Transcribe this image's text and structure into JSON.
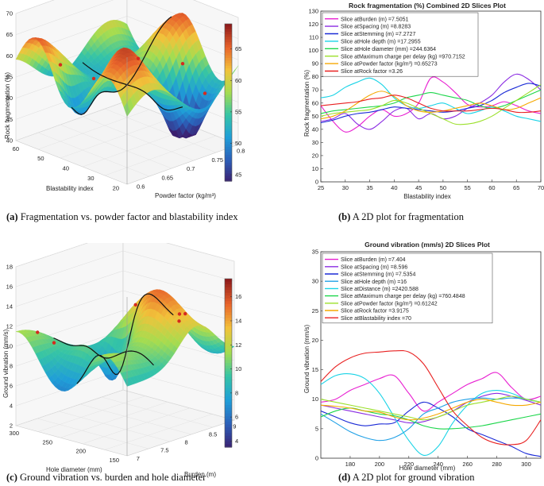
{
  "captions": {
    "a_label": "(a)",
    "a_text": "Fragmentation vs. powder factor and blastability index",
    "b_label": "(b)",
    "b_text": "A 2D plot for fragmentation",
    "c_label": "(c)",
    "c_text": "Ground vibration vs. burden and hole diameter",
    "d_label": "(d)",
    "d_text": "A 2D plot for ground vibration"
  },
  "chart_data": [
    {
      "id": "a",
      "type": "surface3d",
      "title": "",
      "zlabel": "Rock fragmentation (%)",
      "xlabel": "Blastability index",
      "ylabel": "Powder factor (kg/m³)",
      "z_ticks": [
        "40",
        "45",
        "50",
        "55",
        "60",
        "65",
        "70"
      ],
      "x_ticks": [
        "60",
        "50",
        "40",
        "30",
        "20"
      ],
      "y_ticks": [
        "0.6",
        "0.65",
        "0.7",
        "0.75",
        "0.8"
      ],
      "zlim": [
        40,
        70
      ],
      "colorbar_ticks": [
        "45",
        "50",
        "55",
        "60",
        "65"
      ],
      "colorbar_range": [
        44,
        69
      ],
      "colormap": [
        "#3b1f6f",
        "#2c5fb8",
        "#1f9ed8",
        "#35c4a6",
        "#a6dc4f",
        "#f2c23a",
        "#e8632b",
        "#8f1b1b"
      ]
    },
    {
      "id": "b",
      "type": "line",
      "title": "Rock fragmentation (%) Combined 2D Slices Plot",
      "xlabel": "Blastability index",
      "ylabel": "Rock fragmentation (%)",
      "xlim": [
        25,
        70
      ],
      "ylim": [
        0,
        130
      ],
      "x_ticks": [
        "25",
        "30",
        "35",
        "40",
        "45",
        "50",
        "55",
        "60",
        "65",
        "70"
      ],
      "y_ticks": [
        "0",
        "10",
        "20",
        "30",
        "40",
        "50",
        "60",
        "70",
        "80",
        "90",
        "100",
        "110",
        "120",
        "130"
      ],
      "x": [
        25,
        27.5,
        30,
        32.5,
        35,
        37.5,
        40,
        42.5,
        45,
        47.5,
        50,
        52.5,
        55,
        57.5,
        60,
        62.5,
        65,
        67.5,
        70
      ],
      "series": [
        {
          "name": "Slice atBurden (m) =7.5051",
          "color": "#e81fd1",
          "values": [
            58,
            46,
            38,
            42,
            50,
            55,
            50,
            52,
            60,
            79,
            76,
            68,
            59,
            57,
            58,
            61,
            58,
            54,
            52
          ]
        },
        {
          "name": "Slice atSpacing (m) =8.8283",
          "color": "#8a2be2",
          "values": [
            46,
            48,
            52,
            44,
            40,
            46,
            54,
            56,
            48,
            52,
            48,
            50,
            56,
            60,
            66,
            76,
            82,
            78,
            70
          ]
        },
        {
          "name": "Slice atStemming (m) =7.2727",
          "color": "#1a2ad6",
          "values": [
            45,
            47,
            50,
            52,
            53,
            55,
            57,
            56,
            55,
            54,
            53,
            54,
            56,
            58,
            62,
            68,
            72,
            75,
            73
          ]
        },
        {
          "name": "Slice atHole depth (m) =17.2955",
          "color": "#19d3e6",
          "values": [
            64,
            66,
            72,
            76,
            79,
            74,
            64,
            58,
            56,
            58,
            60,
            56,
            52,
            54,
            57,
            54,
            50,
            48,
            46
          ]
        },
        {
          "name": "Slice atHole diameter (mm) =244.6364",
          "color": "#1bd64a",
          "values": [
            52,
            54,
            55,
            56,
            57,
            58,
            60,
            64,
            66,
            68,
            66,
            64,
            62,
            58,
            56,
            58,
            62,
            66,
            70
          ]
        },
        {
          "name": "Slice atMaximum charge per delay (kg) =970.7152",
          "color": "#9be02a",
          "values": [
            50,
            52,
            53,
            54,
            55,
            58,
            62,
            60,
            56,
            52,
            48,
            44,
            44,
            46,
            50,
            56,
            62,
            68,
            74
          ]
        },
        {
          "name": "Slice atPowder factor (kg/m³) =0.65273",
          "color": "#f5a800",
          "values": [
            48,
            50,
            54,
            60,
            66,
            69,
            65,
            58,
            54,
            53,
            54,
            56,
            58,
            60,
            58,
            55,
            56,
            60,
            64
          ]
        },
        {
          "name": "Slice atRock factor =3.26",
          "color": "#e82020",
          "values": [
            58,
            59,
            60,
            61,
            63,
            64,
            66,
            64,
            60,
            56,
            54,
            54,
            54,
            55,
            56,
            55,
            53,
            53,
            54
          ]
        }
      ]
    },
    {
      "id": "c",
      "type": "surface3d",
      "title": "",
      "zlabel": "Ground vibration (mm/s)",
      "xlabel": "Hole diameter (mm)",
      "ylabel": "Burden (m)",
      "z_ticks": [
        "2",
        "4",
        "6",
        "8",
        "10",
        "12",
        "14",
        "16",
        "18"
      ],
      "x_ticks": [
        "300",
        "250",
        "200",
        "150"
      ],
      "y_ticks": [
        "7",
        "7.5",
        "8",
        "8.5",
        "9"
      ],
      "zlim": [
        2,
        18
      ],
      "colorbar_ticks": [
        "4",
        "6",
        "8",
        "10",
        "12",
        "14",
        "16"
      ],
      "colorbar_range": [
        3.5,
        17.5
      ],
      "colormap": [
        "#3b1f6f",
        "#2c5fb8",
        "#1f9ed8",
        "#35c4a6",
        "#a6dc4f",
        "#f2c23a",
        "#e8632b",
        "#8f1b1b"
      ]
    },
    {
      "id": "d",
      "type": "line",
      "title": "Ground vibration (mm/s) 2D Slices Plot",
      "xlabel": "Hole diameter (mm)",
      "ylabel": "Ground vibration (mm/s)",
      "xlim": [
        160,
        310
      ],
      "ylim": [
        0,
        35
      ],
      "x_ticks": [
        "180",
        "200",
        "220",
        "240",
        "260",
        "280",
        "300"
      ],
      "y_ticks": [
        "0",
        "5",
        "10",
        "15",
        "20",
        "25",
        "30",
        "35"
      ],
      "x": [
        160,
        170,
        180,
        190,
        200,
        210,
        220,
        230,
        240,
        250,
        260,
        270,
        280,
        290,
        300,
        310
      ],
      "series": [
        {
          "name": "Slice atBurden (m) =7.404",
          "color": "#e81fd1",
          "values": [
            9.5,
            10,
            11.5,
            12.5,
            13.5,
            14,
            11,
            8,
            9.5,
            11,
            12.5,
            13.5,
            14.5,
            12,
            10,
            10.5
          ]
        },
        {
          "name": "Slice atSpacing (m) =8.596",
          "color": "#8a2be2",
          "values": [
            9,
            8.5,
            8,
            7.5,
            7,
            6.5,
            6,
            6.2,
            7,
            8,
            9.5,
            10.5,
            11,
            10.5,
            9.8,
            9
          ]
        },
        {
          "name": "Slice atStemming (m) =7.5354",
          "color": "#1a2ad6",
          "values": [
            8,
            7,
            6,
            5.5,
            5.8,
            6,
            8,
            9.5,
            8.5,
            7,
            5,
            4,
            3,
            2,
            0.8,
            0.3
          ]
        },
        {
          "name": "Slice atHole depth (m) =16",
          "color": "#1fa0e6",
          "values": [
            7.5,
            6,
            4.5,
            3.5,
            3,
            3.5,
            5,
            7.5,
            8.5,
            9.5,
            10,
            10.2,
            10,
            10.2,
            10,
            9.5
          ]
        },
        {
          "name": "Slice atDistance (m) =2420.588",
          "color": "#19d3e6",
          "values": [
            12.5,
            14,
            14.3,
            13.5,
            11,
            7,
            3,
            0.5,
            2,
            6,
            9,
            11,
            11.5,
            11,
            10,
            9.5
          ]
        },
        {
          "name": "Slice atMaximum charge per delay (kg) =760.4848",
          "color": "#1bd64a",
          "values": [
            7,
            8,
            8.5,
            8,
            7.5,
            7.2,
            6.5,
            5.5,
            5,
            5,
            5.2,
            5.5,
            6,
            6.5,
            7,
            7.5
          ]
        },
        {
          "name": "Slice atPowder factor (kg/m³) =0.61242",
          "color": "#9be02a",
          "values": [
            10,
            9.5,
            9,
            8.5,
            8,
            7.5,
            7,
            6.5,
            7,
            8,
            9,
            9.5,
            10,
            10.5,
            10,
            9.5
          ]
        },
        {
          "name": "Slice atRock factor =3.9175",
          "color": "#f5a800",
          "values": [
            9,
            8.8,
            8.5,
            8,
            7.8,
            7,
            6.5,
            6.8,
            7.5,
            8.5,
            9.5,
            10,
            9.5,
            9,
            9,
            9.5
          ]
        },
        {
          "name": "Slice atBlastability index =70",
          "color": "#e82020",
          "values": [
            13,
            15.5,
            17,
            17.8,
            18,
            18.2,
            18,
            16,
            12,
            8,
            5.5,
            3.5,
            2.5,
            2.3,
            3,
            6.5
          ]
        }
      ]
    }
  ]
}
